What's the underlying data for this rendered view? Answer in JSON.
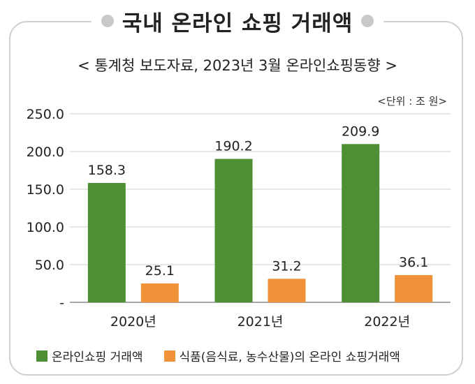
{
  "chart_data": {
    "type": "bar",
    "title": "국내 온라인 쇼핑 거래액",
    "subtitle": "< 통계청 보도자료, 2023년 3월 온라인쇼핑동향 >",
    "unit": "<단위 : 조 원>",
    "categories": [
      "2020년",
      "2021년",
      "2022년"
    ],
    "series": [
      {
        "name": "온라인쇼핑 거래액",
        "values": [
          158.3,
          190.2,
          209.9
        ],
        "color": "#4e8f35"
      },
      {
        "name": "식품(음식료, 농수산물)의 온라인 쇼핑거래액",
        "values": [
          25.1,
          31.2,
          36.1
        ],
        "color": "#f0923a"
      }
    ],
    "data_labels": [
      [
        "158.3",
        "190.2",
        "209.9"
      ],
      [
        "25.1",
        "31.2",
        "36.1"
      ]
    ],
    "yticks": [
      "-",
      "50.0",
      "100.0",
      "150.0",
      "200.0",
      "250.0"
    ],
    "ytick_values": [
      0,
      50,
      100,
      150,
      200,
      250
    ],
    "ylim": [
      0,
      250
    ],
    "grid": true,
    "legend_position": "bottom"
  }
}
